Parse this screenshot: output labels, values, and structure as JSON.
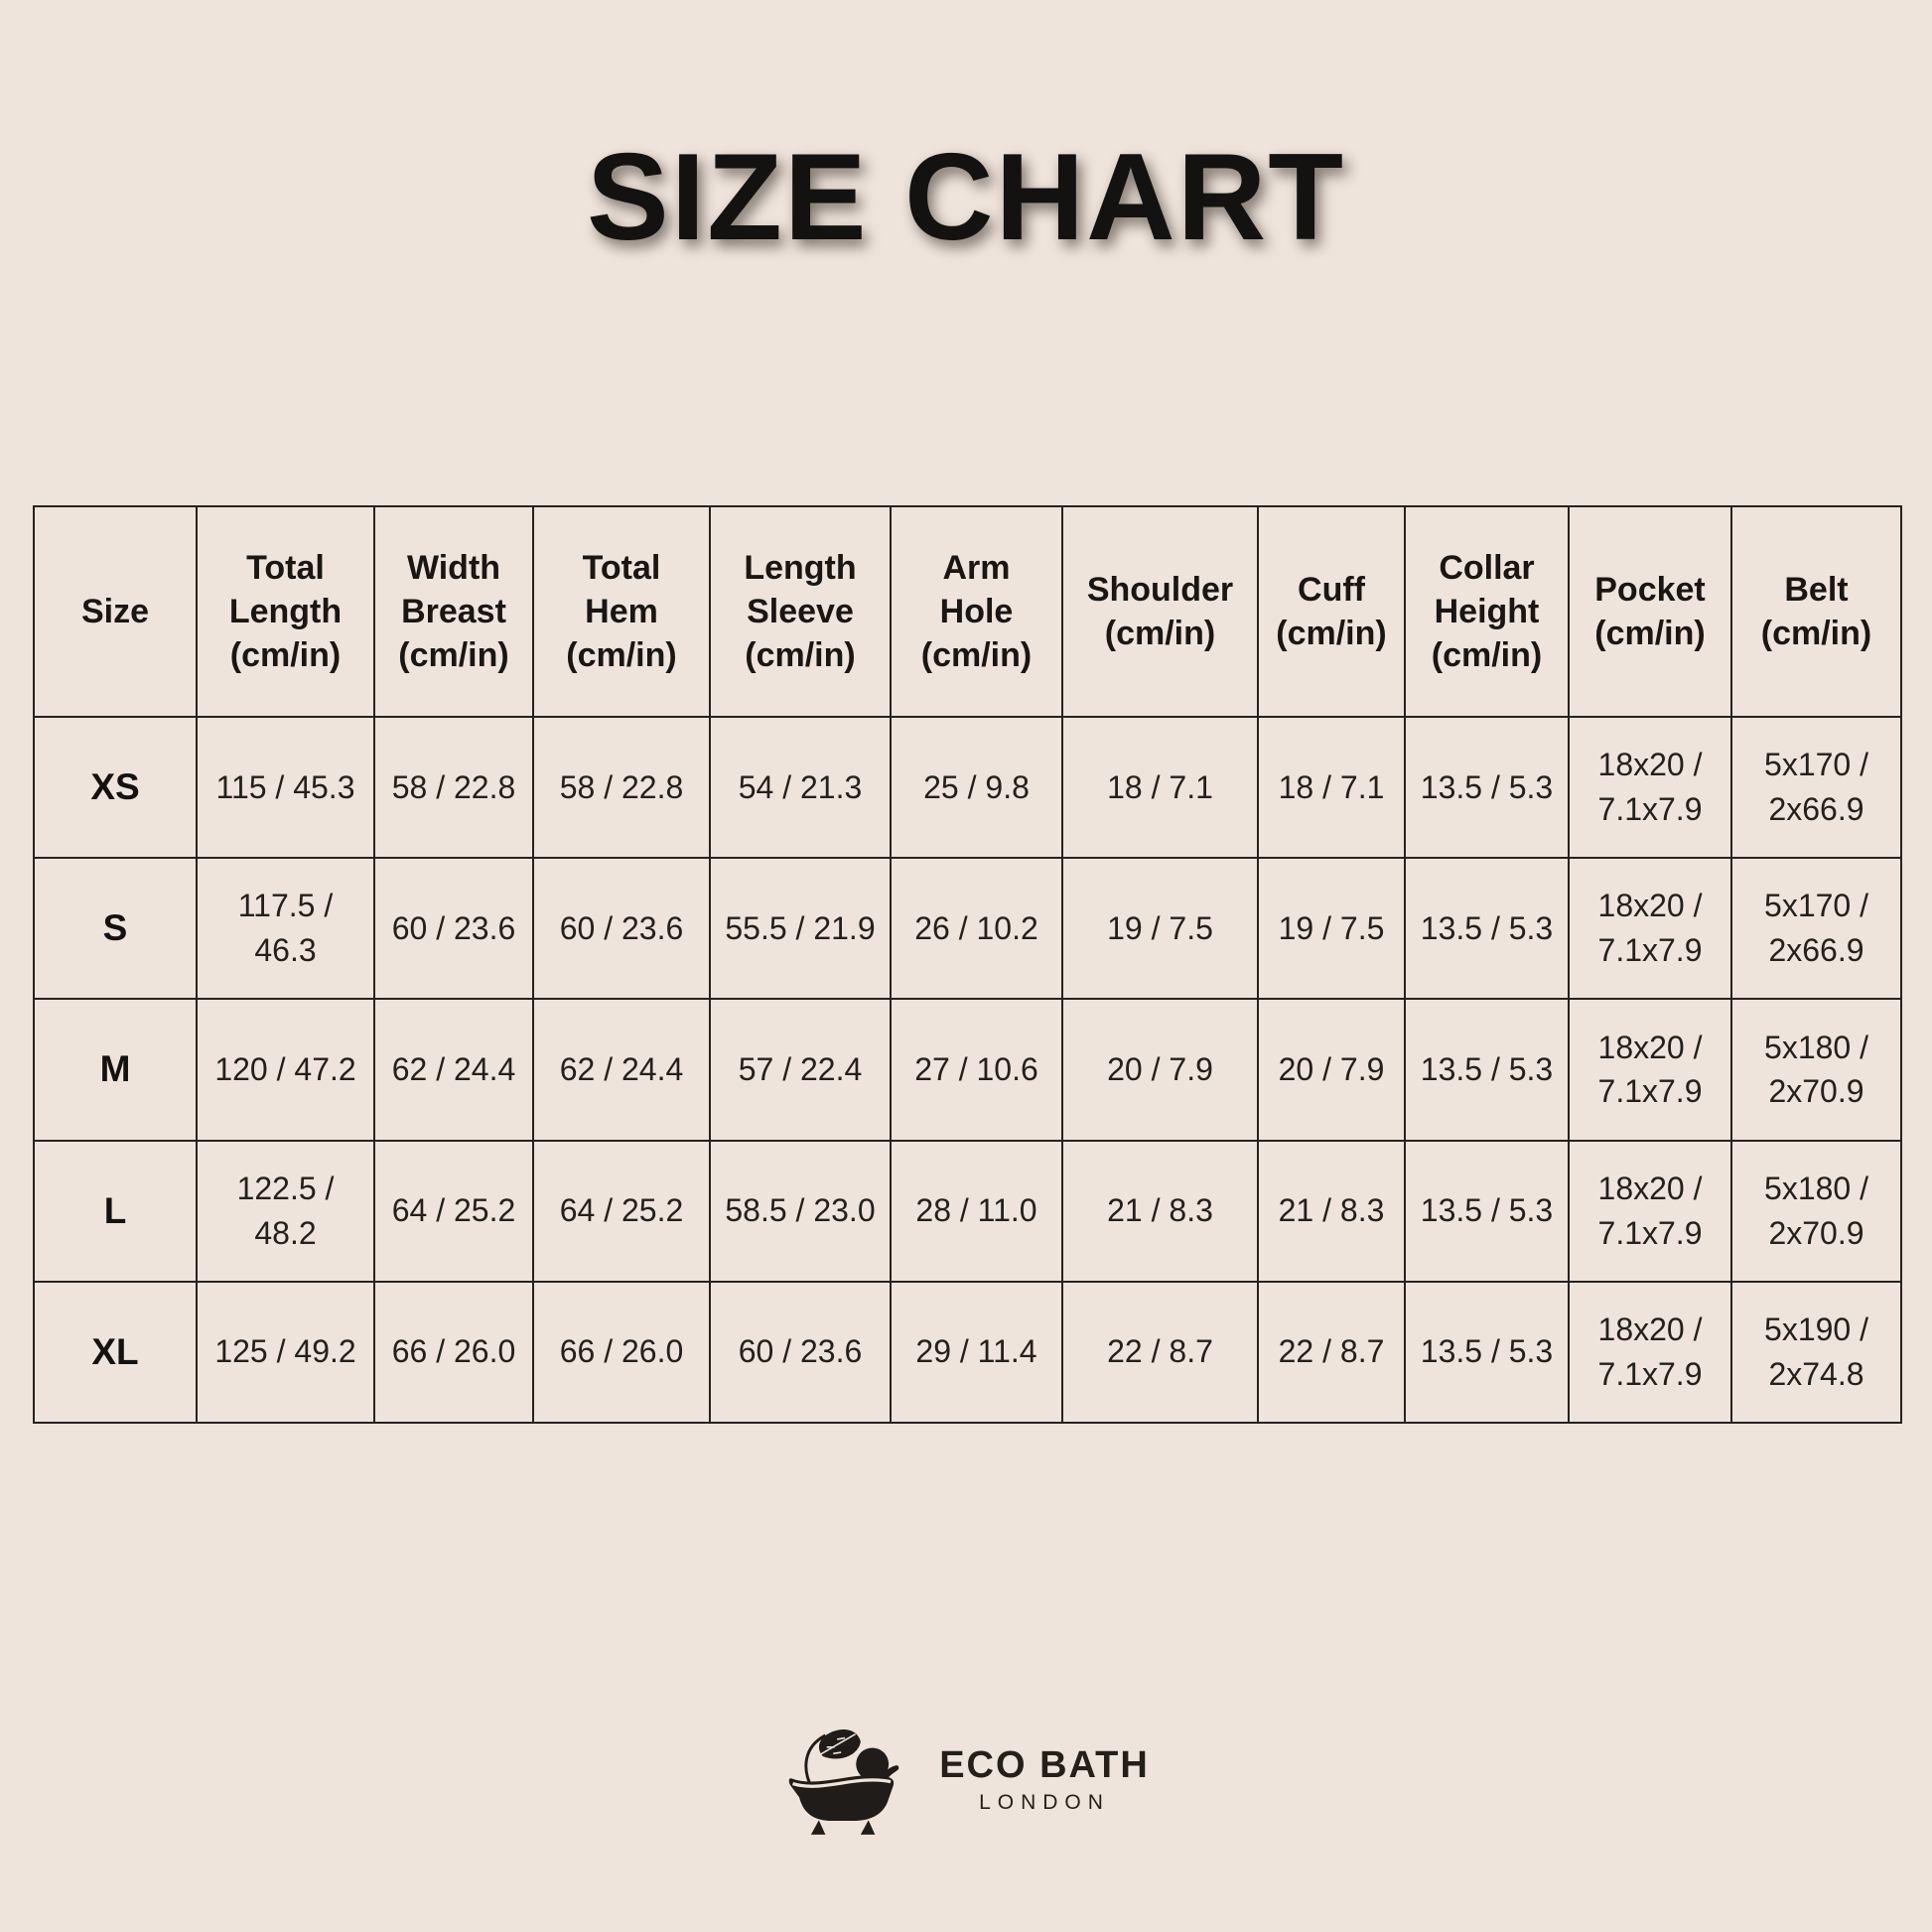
{
  "page": {
    "title": "SIZE CHART",
    "background_color": "#EFE4DB",
    "text_color": "#1D1A18",
    "border_color": "#262220"
  },
  "table": {
    "columns": [
      {
        "label": "Size",
        "lines": [
          "Size"
        ]
      },
      {
        "label": "Total Length (cm/in)",
        "lines": [
          "Total",
          "Length",
          "(cm/in)"
        ]
      },
      {
        "label": "Width Breast (cm/in)",
        "lines": [
          "Width",
          "Breast",
          "(cm/in)"
        ]
      },
      {
        "label": "Total Hem (cm/in)",
        "lines": [
          "Total",
          "Hem",
          "(cm/in)"
        ]
      },
      {
        "label": "Length Sleeve (cm/in)",
        "lines": [
          "Length",
          "Sleeve",
          "(cm/in)"
        ]
      },
      {
        "label": "Arm Hole (cm/in)",
        "lines": [
          "Arm",
          "Hole",
          "(cm/in)"
        ]
      },
      {
        "label": "Shoulder (cm/in)",
        "lines": [
          "Shoulder",
          "(cm/in)"
        ]
      },
      {
        "label": "Cuff (cm/in)",
        "lines": [
          "Cuff",
          "(cm/in)"
        ]
      },
      {
        "label": "Collar Height (cm/in)",
        "lines": [
          "Collar",
          "Height",
          "(cm/in)"
        ]
      },
      {
        "label": "Pocket (cm/in)",
        "lines": [
          "Pocket",
          "(cm/in)"
        ]
      },
      {
        "label": "Belt (cm/in)",
        "lines": [
          "Belt",
          "(cm/in)"
        ]
      }
    ],
    "rows": [
      {
        "size": "XS",
        "values": [
          "115 / 45.3",
          "58 / 22.8",
          "58 / 22.8",
          "54 / 21.3",
          "25 / 9.8",
          "18 / 7.1",
          "18 / 7.1",
          "13.5 / 5.3",
          "18x20 /\n7.1x7.9",
          "5x170 /\n2x66.9"
        ]
      },
      {
        "size": "S",
        "values": [
          "117.5 / 46.3",
          "60 / 23.6",
          "60 / 23.6",
          "55.5 / 21.9",
          "26 / 10.2",
          "19 / 7.5",
          "19 / 7.5",
          "13.5 / 5.3",
          "18x20 /\n7.1x7.9",
          "5x170 /\n2x66.9"
        ]
      },
      {
        "size": "M",
        "values": [
          "120 / 47.2",
          "62 / 24.4",
          "62 / 24.4",
          "57 / 22.4",
          "27 / 10.6",
          "20 / 7.9",
          "20 / 7.9",
          "13.5 / 5.3",
          "18x20 /\n7.1x7.9",
          "5x180 /\n2x70.9"
        ]
      },
      {
        "size": "L",
        "values": [
          "122.5 /\n48.2",
          "64 / 25.2",
          "64 / 25.2",
          "58.5 / 23.0",
          "28 / 11.0",
          "21 / 8.3",
          "21 / 8.3",
          "13.5 / 5.3",
          "18x20 /\n7.1x7.9",
          "5x180 /\n2x70.9"
        ]
      },
      {
        "size": "XL",
        "values": [
          "125 / 49.2",
          "66 / 26.0",
          "66 / 26.0",
          "60 / 23.6",
          "29 / 11.4",
          "22 / 8.7",
          "22 / 8.7",
          "13.5 / 5.3",
          "18x20 /\n7.1x7.9",
          "5x190 /\n2x74.8"
        ]
      }
    ]
  },
  "logo": {
    "brand": "ECO BATH",
    "city": "LONDON",
    "icon": "bathtub-leaf-icon"
  }
}
